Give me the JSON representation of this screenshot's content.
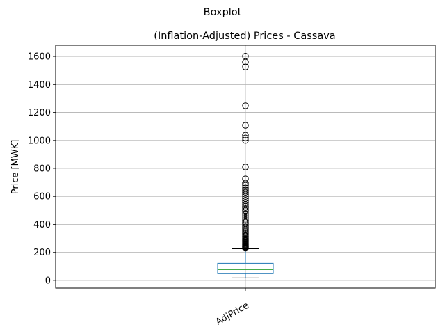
{
  "chart_data": {
    "type": "boxplot",
    "suptitle": "Boxplot",
    "title": "(Inflation-Adjusted) Prices - Cassava",
    "ylabel": "Price [MWK]",
    "xlabel": "",
    "categories": [
      "AdjPrice"
    ],
    "ylim": [
      -55,
      1680
    ],
    "yticks": [
      0,
      200,
      400,
      600,
      800,
      1000,
      1200,
      1400,
      1600
    ],
    "grid": true,
    "boxes": [
      {
        "category": "AdjPrice",
        "whisker_low": 18,
        "q1": 48,
        "median": 78,
        "q3": 122,
        "whisker_high": 226,
        "outliers": [
          230,
          234,
          238,
          242,
          246,
          250,
          255,
          260,
          266,
          272,
          278,
          284,
          290,
          296,
          302,
          310,
          318,
          326,
          334,
          342,
          352,
          362,
          372,
          382,
          392,
          404,
          416,
          430,
          445,
          460,
          475,
          490,
          500,
          510,
          520,
          530,
          542,
          555,
          570,
          585,
          600,
          615,
          630,
          645,
          660,
          680,
          695,
          725,
          810,
          1000,
          1018,
          1038,
          1108,
          1248,
          1525,
          1560,
          1602
        ]
      }
    ],
    "colors": {
      "box": "#1f77b4",
      "median": "#2ca02c",
      "whisker": "#1f77b4",
      "cap": "#000000",
      "outlier_edge": "#000000",
      "grid": "#b0b0b0"
    }
  }
}
